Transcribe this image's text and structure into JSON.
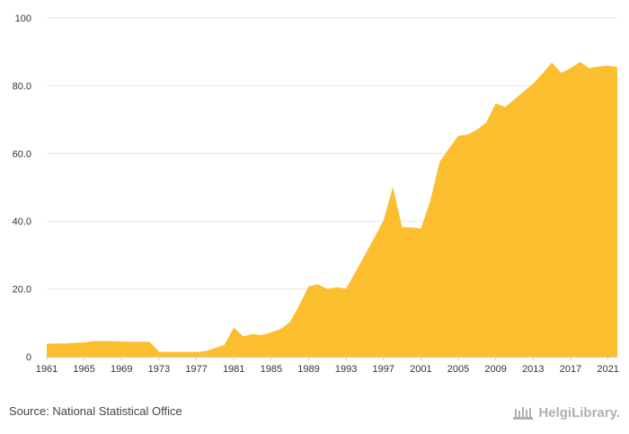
{
  "chart_data": {
    "type": "area",
    "color": "#fbbe2e",
    "ylim": [
      0,
      100
    ],
    "y_ticks": [
      0,
      20,
      40,
      60,
      80,
      100
    ],
    "y_tick_labels": [
      "0",
      "20.0",
      "40.0",
      "60.0",
      "80.0",
      "100"
    ],
    "x_tick_labels": [
      "1961",
      "1965",
      "1969",
      "1973",
      "1977",
      "1981",
      "1985",
      "1989",
      "1993",
      "1997",
      "2001",
      "2005",
      "2009",
      "2013",
      "2017",
      "2021"
    ],
    "grid": true,
    "x": [
      1961,
      1962,
      1963,
      1964,
      1965,
      1966,
      1967,
      1968,
      1969,
      1970,
      1971,
      1972,
      1973,
      1974,
      1975,
      1976,
      1977,
      1978,
      1979,
      1980,
      1981,
      1982,
      1983,
      1984,
      1985,
      1986,
      1987,
      1988,
      1989,
      1990,
      1991,
      1992,
      1993,
      1994,
      1995,
      1996,
      1997,
      1998,
      1999,
      2000,
      2001,
      2002,
      2003,
      2004,
      2005,
      2006,
      2007,
      2008,
      2009,
      2010,
      2011,
      2012,
      2013,
      2014,
      2015,
      2016,
      2017,
      2018,
      2019,
      2020,
      2021,
      2022
    ],
    "values": [
      3.8,
      3.9,
      3.9,
      4.1,
      4.2,
      4.6,
      4.6,
      4.6,
      4.5,
      4.4,
      4.4,
      4.4,
      1.5,
      1.4,
      1.4,
      1.4,
      1.4,
      1.7,
      2.6,
      3.5,
      8.6,
      6.0,
      6.7,
      6.4,
      7.2,
      8.2,
      10.2,
      15.2,
      20.8,
      21.4,
      20.0,
      20.5,
      20.1,
      25.0,
      30.0,
      35.0,
      40.2,
      50.1,
      38.2,
      38.2,
      37.8,
      46.0,
      57.5,
      61.5,
      65.2,
      65.6,
      67.0,
      69.2,
      74.8,
      73.7,
      76.0,
      78.3,
      80.6,
      83.6,
      86.8,
      83.8,
      85.2,
      87.0,
      85.2,
      85.7,
      85.9,
      85.5
    ]
  },
  "footer": {
    "source": "Source: National Statistical Office",
    "logo_text": "HelgiLibrary."
  }
}
